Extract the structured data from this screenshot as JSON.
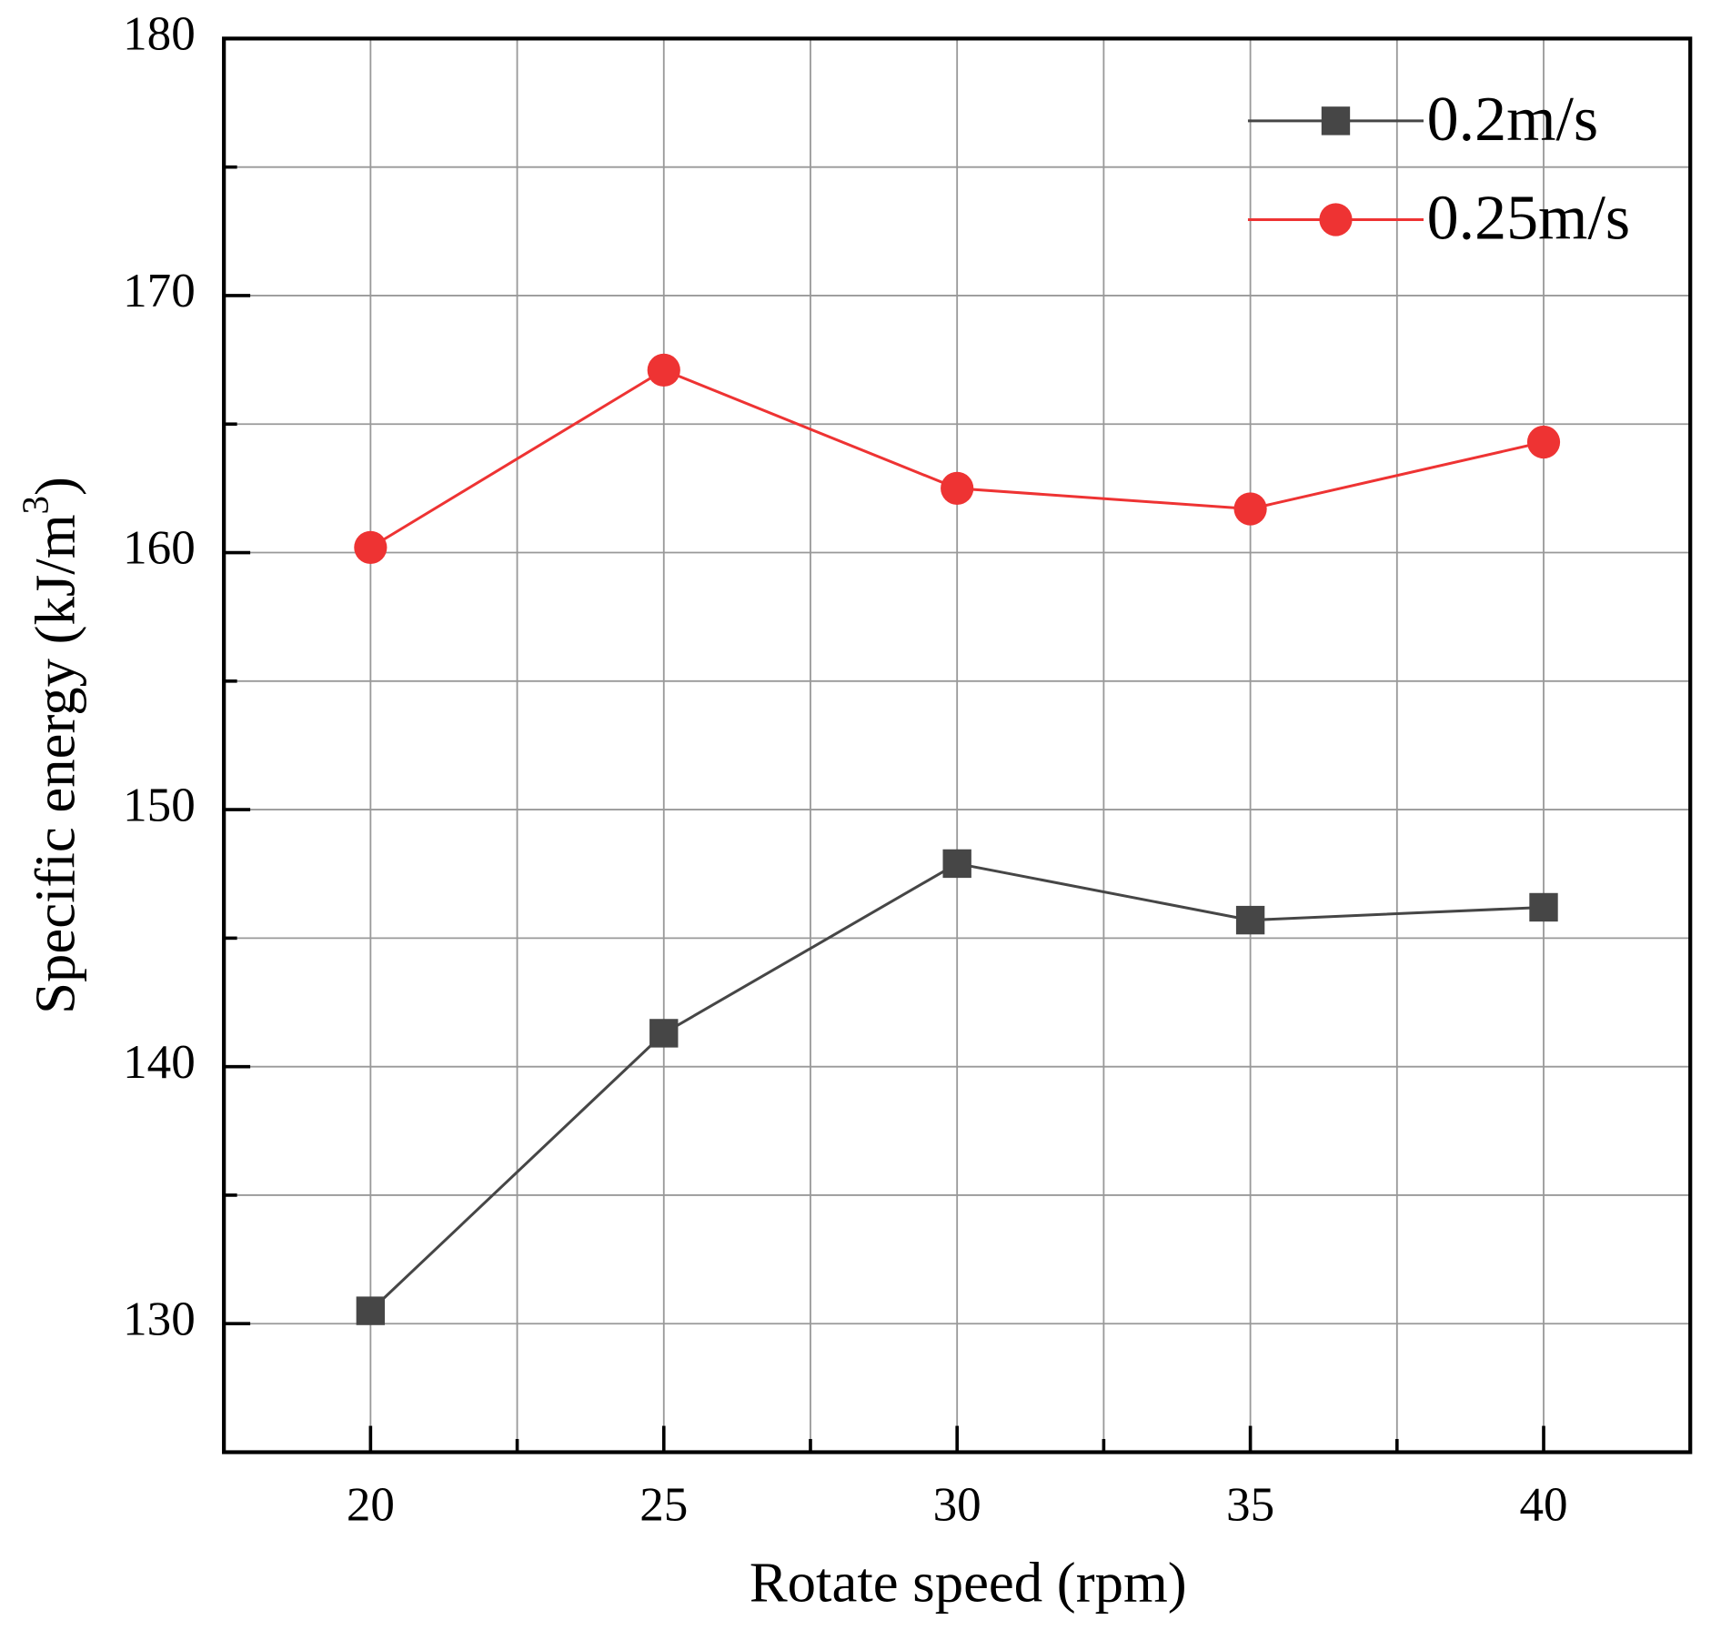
{
  "chart_data": {
    "type": "line",
    "xlabel": "Rotate speed (rpm)",
    "ylabel_parts": [
      "Specific energy (kJ/m",
      "3",
      ")"
    ],
    "x": [
      20,
      25,
      30,
      35,
      40
    ],
    "series": [
      {
        "name": "0.2m/s",
        "color": "#464646",
        "marker": "square",
        "values": [
          130.5,
          141.3,
          147.9,
          145.7,
          146.2
        ]
      },
      {
        "name": "0.25m/s",
        "color": "#ee3333",
        "marker": "circle",
        "values": [
          160.2,
          167.1,
          162.5,
          161.7,
          164.3
        ]
      }
    ],
    "xlim": [
      17.5,
      42.5
    ],
    "ylim": [
      125,
      180
    ],
    "xticks": [
      20,
      25,
      30,
      35,
      40
    ],
    "yticks": [
      130,
      140,
      150,
      160,
      170,
      180
    ],
    "xminor_ticks": [
      22.5,
      27.5,
      32.5,
      37.5
    ],
    "yminor_ticks": [
      135,
      145,
      155,
      165,
      175
    ],
    "grid": true,
    "legend": "upper right"
  }
}
